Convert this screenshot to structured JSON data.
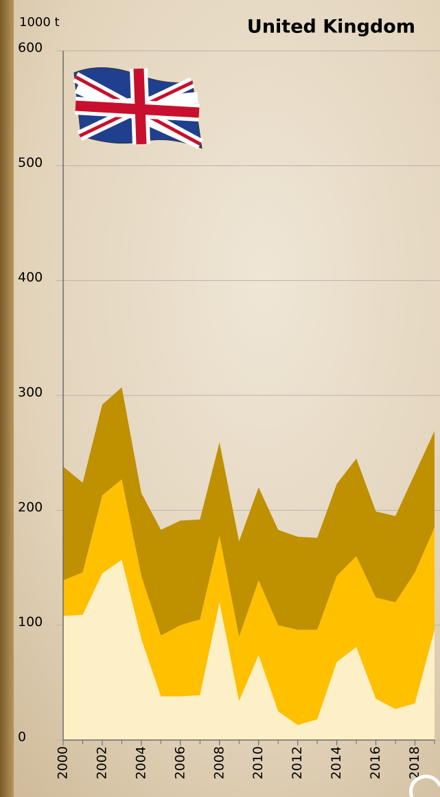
{
  "chart_data": {
    "type": "stacked_area",
    "title": "United Kingdom",
    "y_label": "1000 t",
    "x": [
      2000,
      2001,
      2002,
      2003,
      2004,
      2005,
      2006,
      2007,
      2008,
      2009,
      2010,
      2011,
      2012,
      2013,
      2014,
      2015,
      2016,
      2017,
      2018,
      2019
    ],
    "series": [
      {
        "color": "#fdf0c6",
        "values": [
          108,
          109,
          145,
          157,
          88,
          38,
          38,
          39,
          120,
          34,
          74,
          25,
          13,
          18,
          68,
          81,
          36,
          27,
          32,
          96
        ]
      },
      {
        "color": "#ffc000",
        "values": [
          31,
          37,
          68,
          70,
          55,
          53,
          62,
          66,
          58,
          56,
          65,
          75,
          83,
          78,
          75,
          79,
          88,
          93,
          114,
          89
        ]
      },
      {
        "color": "#bf9000",
        "values": [
          99,
          78,
          79,
          80,
          72,
          92,
          91,
          87,
          81,
          83,
          81,
          83,
          81,
          80,
          80,
          85,
          75,
          75,
          86,
          84
        ]
      }
    ],
    "xlim": [
      2000,
      2019
    ],
    "xticks": [
      2000,
      2002,
      2004,
      2006,
      2008,
      2010,
      2012,
      2014,
      2016,
      2018
    ],
    "ylim": [
      0,
      600
    ],
    "yticks": [
      0,
      100,
      200,
      300,
      400,
      500,
      600
    ],
    "grid": true
  }
}
